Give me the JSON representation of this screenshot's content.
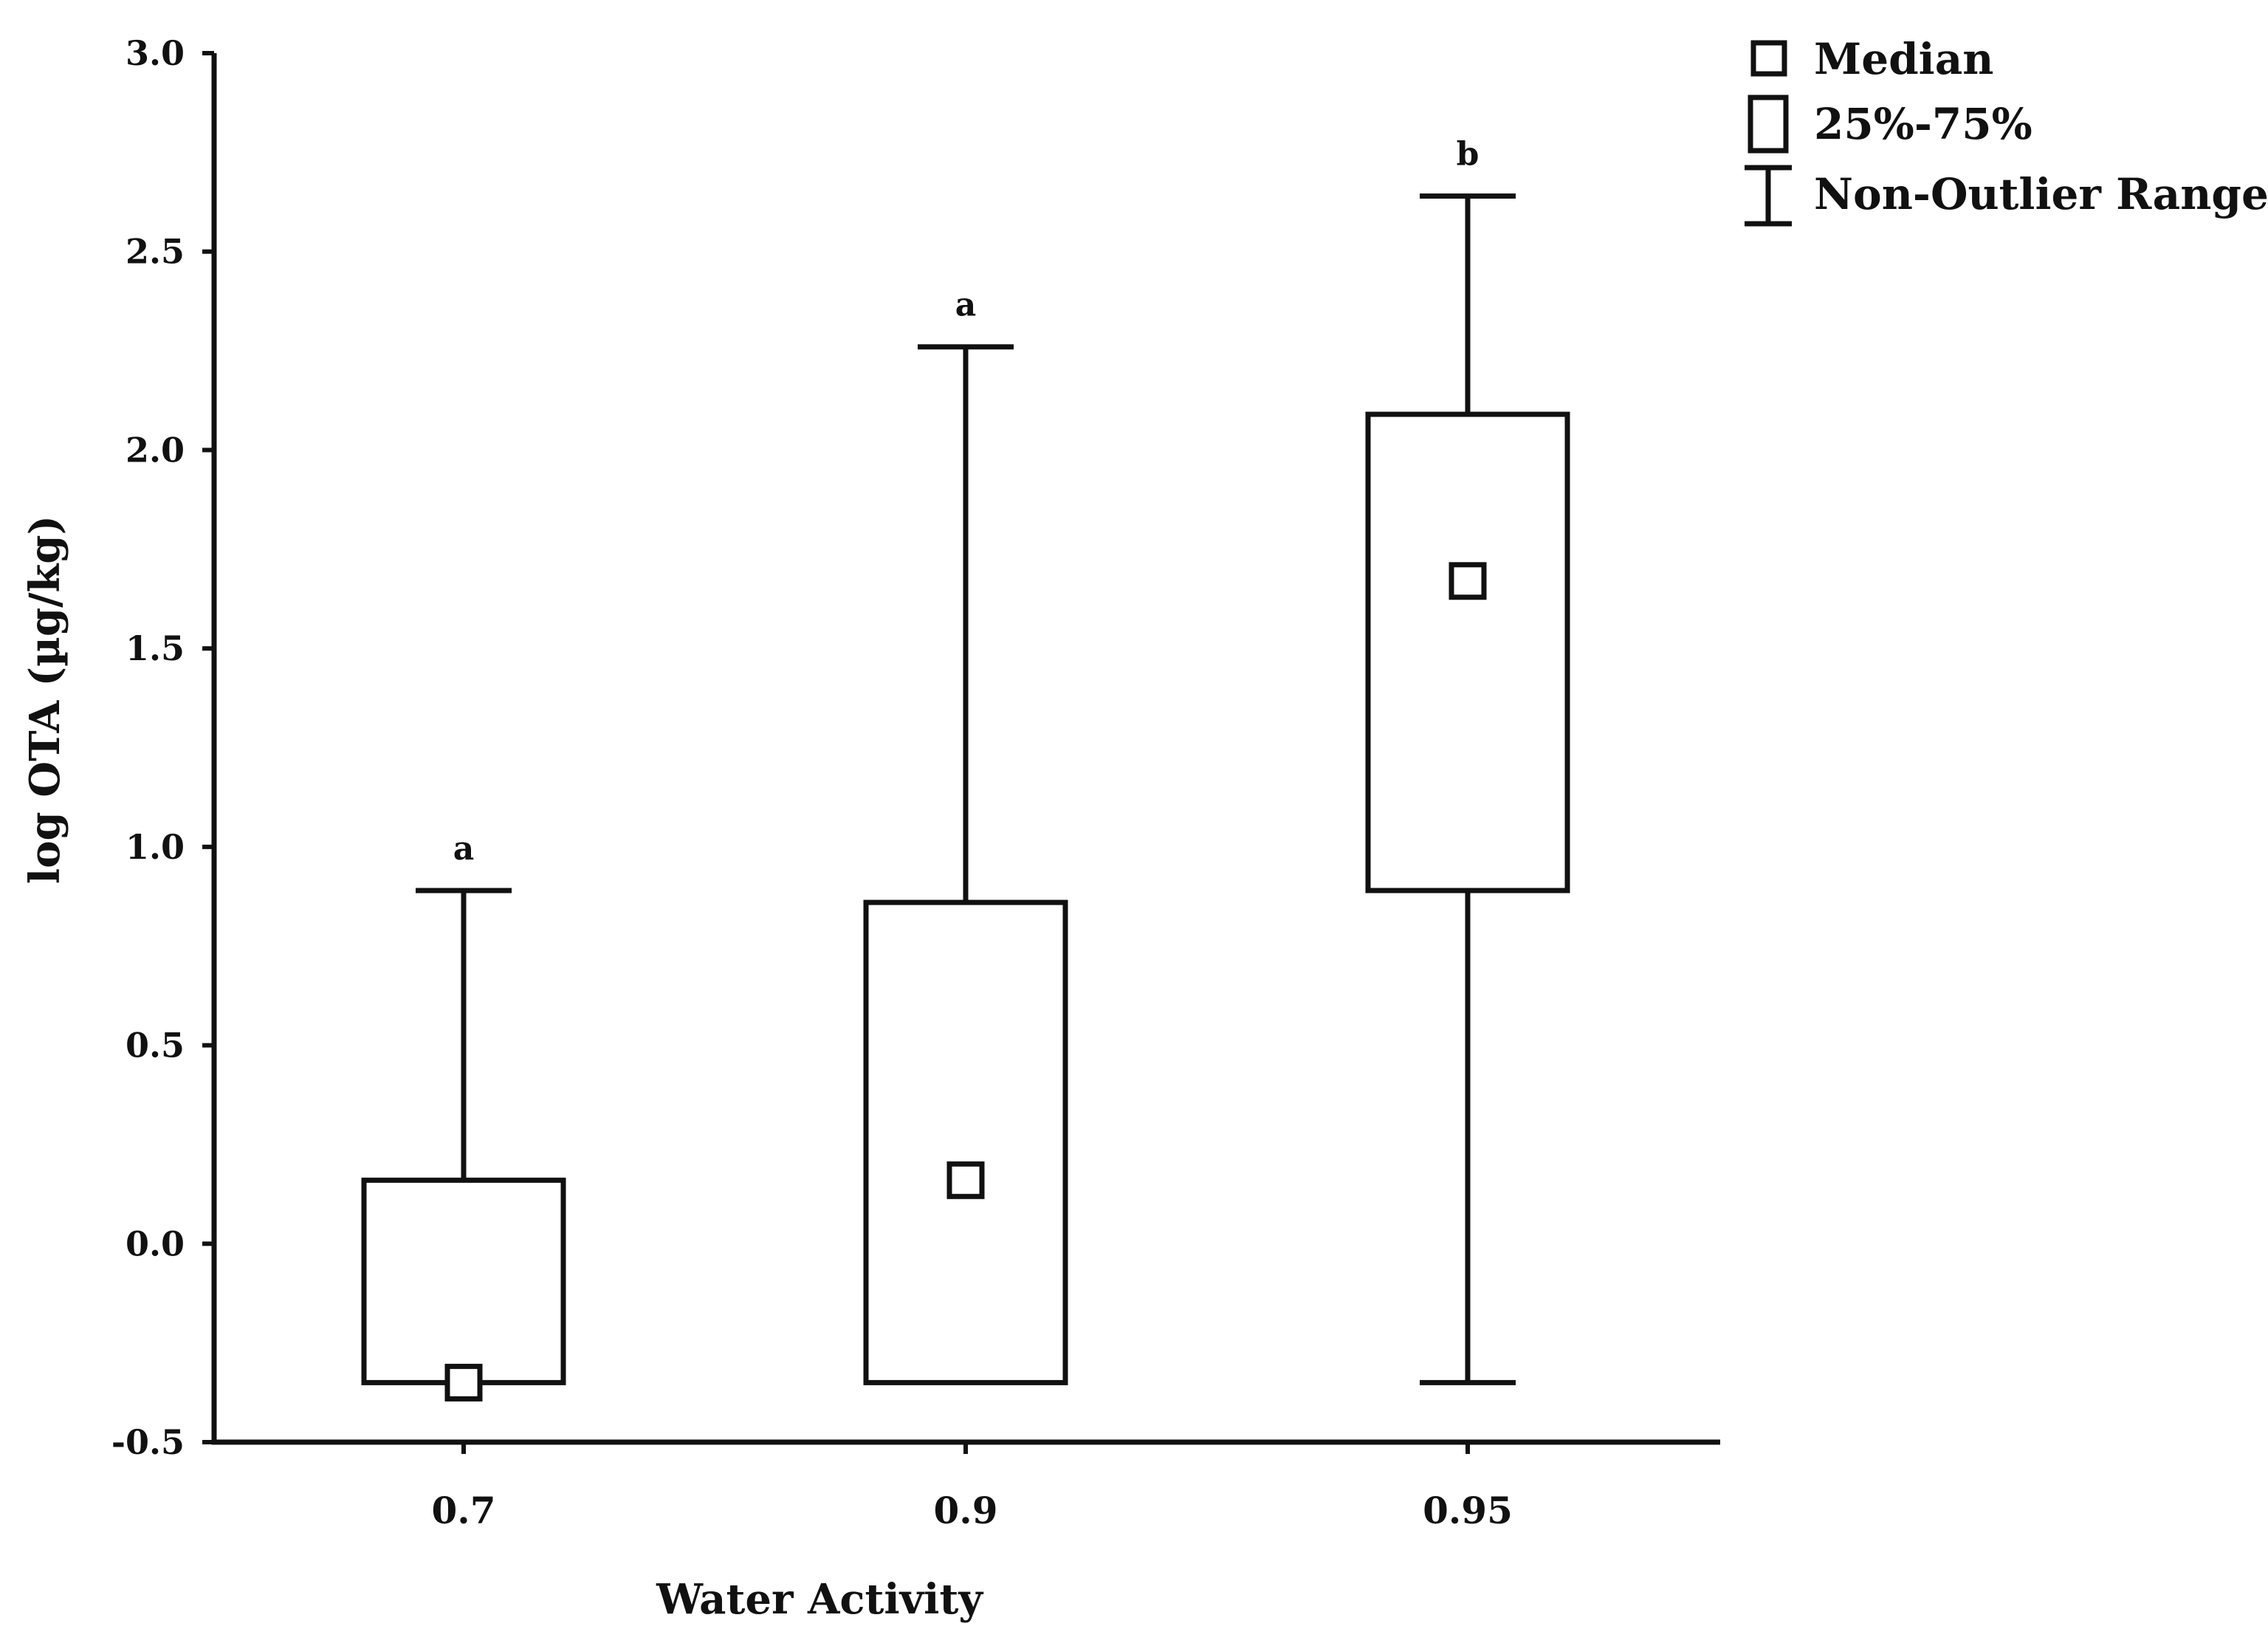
{
  "chart_data": {
    "type": "box",
    "title": "",
    "xlabel": "Water Activity",
    "ylabel": "log OTA (µg/kg)",
    "ylim": [
      -0.5,
      3.0
    ],
    "yticks": [
      3.0,
      2.5,
      2.0,
      1.5,
      1.0,
      0.5,
      0.0,
      -0.5
    ],
    "ytick_labels": [
      "3.0",
      "2.5",
      "2.0",
      "1.5",
      "1.0",
      "0.5",
      "0.0",
      "-0.5"
    ],
    "grid": false,
    "legend_position": "top-right",
    "categories": [
      "0.7",
      "0.9",
      "0.95"
    ],
    "series": [
      {
        "category": "0.7",
        "median": -0.35,
        "q1": -0.35,
        "q3": 0.16,
        "whisker_low": -0.35,
        "whisker_high": 0.89,
        "significance": "a"
      },
      {
        "category": "0.9",
        "median": 0.16,
        "q1": -0.35,
        "q3": 0.86,
        "whisker_low": -0.35,
        "whisker_high": 2.26,
        "significance": "a"
      },
      {
        "category": "0.95",
        "median": 1.67,
        "q1": 0.89,
        "q3": 2.09,
        "whisker_low": -0.35,
        "whisker_high": 2.64,
        "significance": "b"
      }
    ],
    "legend": [
      {
        "symbol": "median",
        "label": "Median"
      },
      {
        "symbol": "box",
        "label": "25%-75%"
      },
      {
        "symbol": "whisker",
        "label": "Non-Outlier Range"
      }
    ],
    "colors": {
      "stroke": "#111111",
      "background": "#ffffff"
    }
  }
}
